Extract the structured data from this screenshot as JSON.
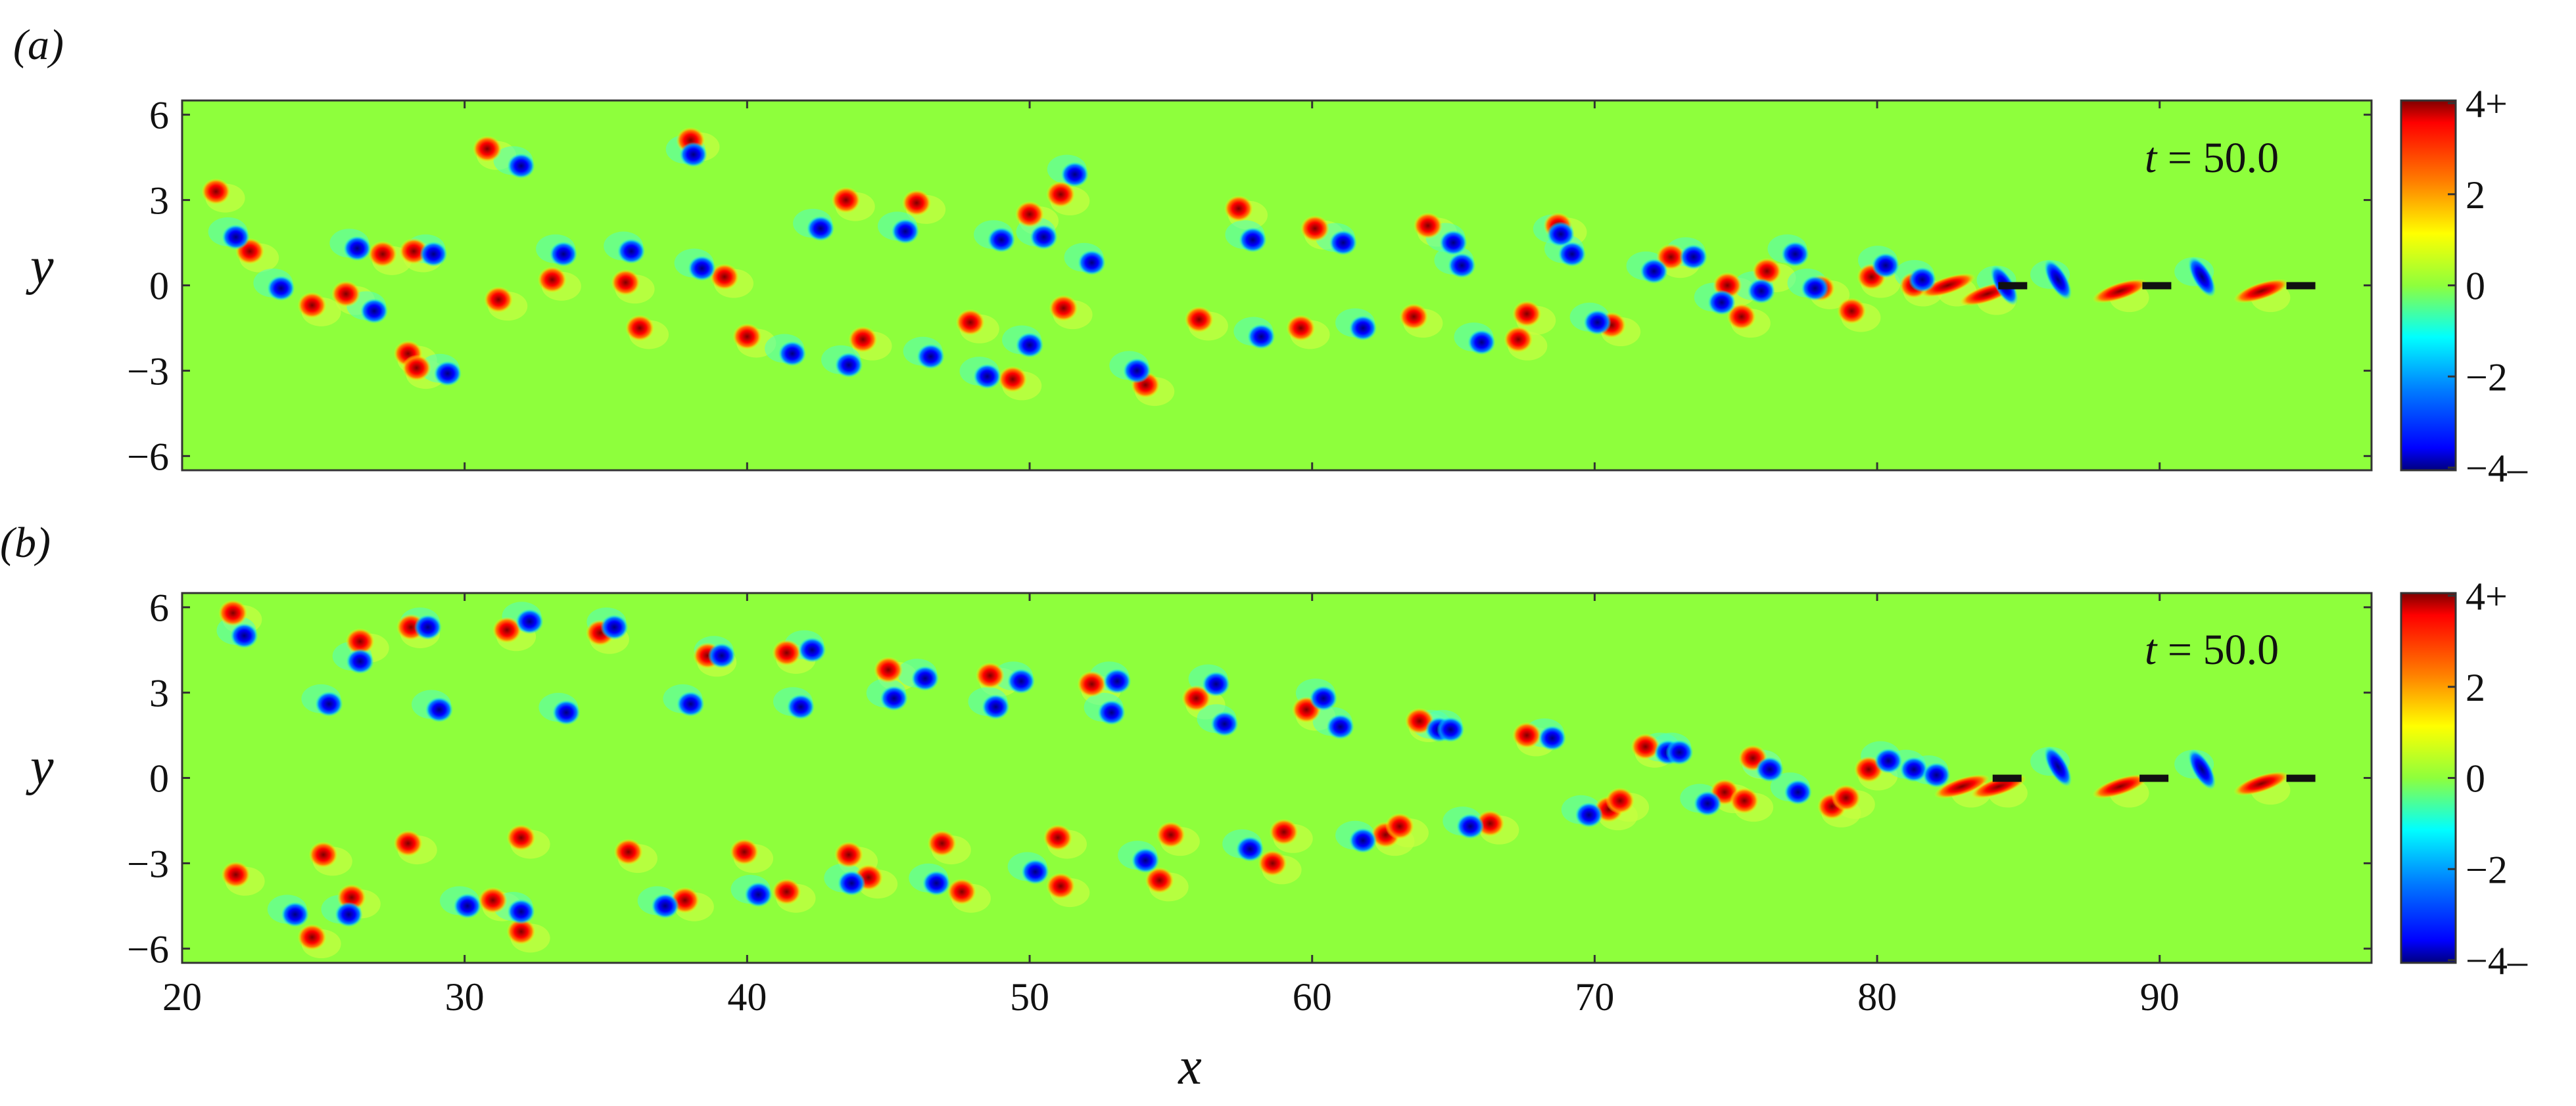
{
  "colors": {
    "background_field": "#8eff3c",
    "positive_vortex": "#e00000",
    "negative_vortex": "#0020ff",
    "plate": "#111111",
    "colormap": [
      "#00007f",
      "#0000ff",
      "#007fff",
      "#00ffff",
      "#7fff7f",
      "#ffff00",
      "#ff7f00",
      "#ff0000",
      "#7f0000"
    ]
  },
  "chart_data": [
    {
      "type": "heatmap",
      "panel_label": "(a)",
      "xlabel": "",
      "ylabel": "y",
      "annotation": "t = 50.0",
      "xlim": [
        20,
        97.5
      ],
      "ylim": [
        -6.5,
        6.5
      ],
      "xticks": [
        20,
        30,
        40,
        50,
        60,
        70,
        80,
        90
      ],
      "yticks": [
        6,
        3,
        0,
        -3,
        -6
      ],
      "ytick_labels": [
        "6",
        "3",
        "0",
        "−3",
        "−6"
      ],
      "colorbar": {
        "ticks": [
          "4+",
          "2",
          "0",
          "−2",
          "−4–"
        ],
        "range": [
          -4,
          4
        ]
      },
      "plates": [
        [
          84.8,
          0
        ],
        [
          89.9,
          0
        ],
        [
          95.0,
          0
        ]
      ],
      "positive_vortices": [
        [
          21.2,
          3.3
        ],
        [
          22.4,
          1.2
        ],
        [
          24.6,
          -0.7
        ],
        [
          25.8,
          -0.3
        ],
        [
          27.1,
          1.1
        ],
        [
          28.2,
          1.2
        ],
        [
          28.0,
          -2.4
        ],
        [
          28.3,
          -2.9
        ],
        [
          30.8,
          4.8
        ],
        [
          31.2,
          -0.5
        ],
        [
          33.1,
          0.2
        ],
        [
          35.7,
          0.1
        ],
        [
          36.2,
          -1.5
        ],
        [
          38.0,
          5.1
        ],
        [
          39.2,
          0.3
        ],
        [
          40.0,
          -1.8
        ],
        [
          43.5,
          3.0
        ],
        [
          44.1,
          -1.9
        ],
        [
          46.0,
          2.9
        ],
        [
          47.9,
          -1.3
        ],
        [
          49.4,
          -3.3
        ],
        [
          50.0,
          2.5
        ],
        [
          51.1,
          3.2
        ],
        [
          51.2,
          -0.8
        ],
        [
          54.1,
          -3.5
        ],
        [
          56.0,
          -1.2
        ],
        [
          57.4,
          2.7
        ],
        [
          59.6,
          -1.5
        ],
        [
          60.1,
          2.0
        ],
        [
          63.6,
          -1.1
        ],
        [
          64.1,
          2.1
        ],
        [
          67.6,
          -1.0
        ],
        [
          67.3,
          -1.9
        ],
        [
          68.7,
          2.1
        ],
        [
          70.6,
          -1.4
        ],
        [
          72.7,
          1.0
        ],
        [
          74.7,
          0.0
        ],
        [
          75.2,
          -1.1
        ],
        [
          76.1,
          0.5
        ],
        [
          78.0,
          -0.1
        ],
        [
          79.1,
          -0.9
        ],
        [
          79.8,
          0.3
        ],
        [
          81.3,
          0.0
        ],
        [
          82.5,
          0.0
        ],
        [
          83.9,
          -0.3
        ],
        [
          88.6,
          -0.2
        ],
        [
          93.6,
          -0.2
        ]
      ],
      "negative_vortices": [
        [
          21.9,
          1.7
        ],
        [
          23.5,
          -0.1
        ],
        [
          26.2,
          1.3
        ],
        [
          26.8,
          -0.9
        ],
        [
          28.9,
          1.1
        ],
        [
          29.4,
          -3.1
        ],
        [
          32.0,
          4.2
        ],
        [
          33.5,
          1.1
        ],
        [
          35.9,
          1.2
        ],
        [
          38.1,
          4.6
        ],
        [
          38.4,
          0.6
        ],
        [
          41.6,
          -2.4
        ],
        [
          42.6,
          2.0
        ],
        [
          43.6,
          -2.8
        ],
        [
          45.6,
          1.9
        ],
        [
          46.5,
          -2.5
        ],
        [
          48.5,
          -3.2
        ],
        [
          49.0,
          1.6
        ],
        [
          50.0,
          -2.1
        ],
        [
          50.5,
          1.7
        ],
        [
          51.6,
          3.9
        ],
        [
          52.2,
          0.8
        ],
        [
          53.8,
          -3.0
        ],
        [
          57.9,
          1.6
        ],
        [
          58.2,
          -1.8
        ],
        [
          61.1,
          1.5
        ],
        [
          61.8,
          -1.5
        ],
        [
          65.0,
          1.5
        ],
        [
          65.3,
          0.7
        ],
        [
          66.0,
          -2.0
        ],
        [
          68.8,
          1.8
        ],
        [
          69.2,
          1.1
        ],
        [
          70.1,
          -1.3
        ],
        [
          72.1,
          0.5
        ],
        [
          73.5,
          1.0
        ],
        [
          74.5,
          -0.6
        ],
        [
          75.9,
          -0.2
        ],
        [
          77.1,
          1.1
        ],
        [
          77.8,
          -0.1
        ],
        [
          80.3,
          0.7
        ],
        [
          81.6,
          0.2
        ],
        [
          84.5,
          0.0
        ],
        [
          86.4,
          0.2
        ],
        [
          91.5,
          0.3
        ]
      ]
    },
    {
      "type": "heatmap",
      "panel_label": "(b)",
      "xlabel": "x",
      "ylabel": "y",
      "annotation": "t = 50.0",
      "xlim": [
        20,
        97.5
      ],
      "ylim": [
        -6.5,
        6.5
      ],
      "xticks": [
        20,
        30,
        40,
        50,
        60,
        70,
        80,
        90
      ],
      "xtick_labels": [
        "20",
        "30",
        "40",
        "50",
        "60",
        "70",
        "80",
        "90"
      ],
      "yticks": [
        6,
        3,
        0,
        -3,
        -6
      ],
      "ytick_labels": [
        "6",
        "3",
        "0",
        "−3",
        "−6"
      ],
      "colorbar": {
        "ticks": [
          "4+",
          "2",
          "0",
          "−2",
          "−4–"
        ],
        "range": [
          -4,
          4
        ]
      },
      "plates": [
        [
          84.6,
          0
        ],
        [
          89.8,
          0
        ],
        [
          95.0,
          0
        ]
      ],
      "positive_vortices": [
        [
          21.8,
          5.8
        ],
        [
          21.9,
          -3.4
        ],
        [
          24.6,
          -5.6
        ],
        [
          25.0,
          -2.7
        ],
        [
          26.3,
          4.8
        ],
        [
          26.0,
          -4.2
        ],
        [
          28.1,
          5.3
        ],
        [
          28.0,
          -2.3
        ],
        [
          31.0,
          -4.3
        ],
        [
          31.5,
          5.2
        ],
        [
          32.0,
          -2.1
        ],
        [
          32.0,
          -5.4
        ],
        [
          34.8,
          5.1
        ],
        [
          35.8,
          -2.6
        ],
        [
          37.8,
          -4.3
        ],
        [
          38.6,
          4.3
        ],
        [
          39.9,
          -2.6
        ],
        [
          41.4,
          4.4
        ],
        [
          41.4,
          -4.0
        ],
        [
          43.6,
          -2.7
        ],
        [
          44.3,
          -3.5
        ],
        [
          45.0,
          3.8
        ],
        [
          46.9,
          -2.3
        ],
        [
          47.6,
          -4.0
        ],
        [
          48.6,
          3.6
        ],
        [
          51.0,
          -2.1
        ],
        [
          51.1,
          -3.8
        ],
        [
          52.2,
          3.3
        ],
        [
          54.6,
          -3.6
        ],
        [
          55.0,
          -2.0
        ],
        [
          55.9,
          2.8
        ],
        [
          58.6,
          -3.0
        ],
        [
          59.0,
          -1.9
        ],
        [
          59.8,
          2.4
        ],
        [
          62.6,
          -2.0
        ],
        [
          63.1,
          -1.7
        ],
        [
          63.8,
          2.0
        ],
        [
          66.3,
          -1.6
        ],
        [
          67.6,
          1.5
        ],
        [
          70.5,
          -1.1
        ],
        [
          70.9,
          -0.8
        ],
        [
          71.8,
          1.1
        ],
        [
          74.6,
          -0.5
        ],
        [
          75.6,
          0.7
        ],
        [
          75.3,
          -0.8
        ],
        [
          78.4,
          -1.0
        ],
        [
          78.9,
          -0.7
        ],
        [
          79.7,
          0.3
        ],
        [
          83.0,
          -0.3
        ],
        [
          84.3,
          -0.3
        ],
        [
          88.6,
          -0.3
        ],
        [
          93.6,
          -0.2
        ]
      ],
      "negative_vortices": [
        [
          22.2,
          5.0
        ],
        [
          24.0,
          -4.8
        ],
        [
          25.2,
          2.6
        ],
        [
          25.9,
          -4.8
        ],
        [
          26.3,
          4.1
        ],
        [
          28.7,
          5.3
        ],
        [
          29.1,
          2.4
        ],
        [
          30.1,
          -4.5
        ],
        [
          32.0,
          -4.7
        ],
        [
          32.3,
          5.5
        ],
        [
          33.6,
          2.3
        ],
        [
          35.3,
          5.3
        ],
        [
          37.1,
          -4.5
        ],
        [
          38.0,
          2.6
        ],
        [
          39.1,
          4.3
        ],
        [
          40.4,
          -4.1
        ],
        [
          41.9,
          2.5
        ],
        [
          42.3,
          4.5
        ],
        [
          43.7,
          -3.7
        ],
        [
          45.2,
          2.8
        ],
        [
          46.3,
          3.5
        ],
        [
          46.7,
          -3.7
        ],
        [
          48.8,
          2.5
        ],
        [
          49.7,
          3.4
        ],
        [
          50.2,
          -3.3
        ],
        [
          53.1,
          3.4
        ],
        [
          52.9,
          2.3
        ],
        [
          54.1,
          -2.9
        ],
        [
          56.6,
          3.3
        ],
        [
          56.9,
          1.9
        ],
        [
          57.8,
          -2.5
        ],
        [
          60.4,
          2.8
        ],
        [
          61.0,
          1.8
        ],
        [
          61.8,
          -2.2
        ],
        [
          64.5,
          1.7
        ],
        [
          64.9,
          1.7
        ],
        [
          65.6,
          -1.7
        ],
        [
          68.5,
          1.4
        ],
        [
          69.8,
          -1.3
        ],
        [
          72.6,
          0.9
        ],
        [
          73.0,
          0.9
        ],
        [
          74.0,
          -0.9
        ],
        [
          76.2,
          0.3
        ],
        [
          77.2,
          -0.5
        ],
        [
          80.4,
          0.6
        ],
        [
          81.3,
          0.3
        ],
        [
          82.1,
          0.1
        ],
        [
          86.4,
          0.4
        ],
        [
          91.5,
          0.3
        ]
      ]
    }
  ]
}
